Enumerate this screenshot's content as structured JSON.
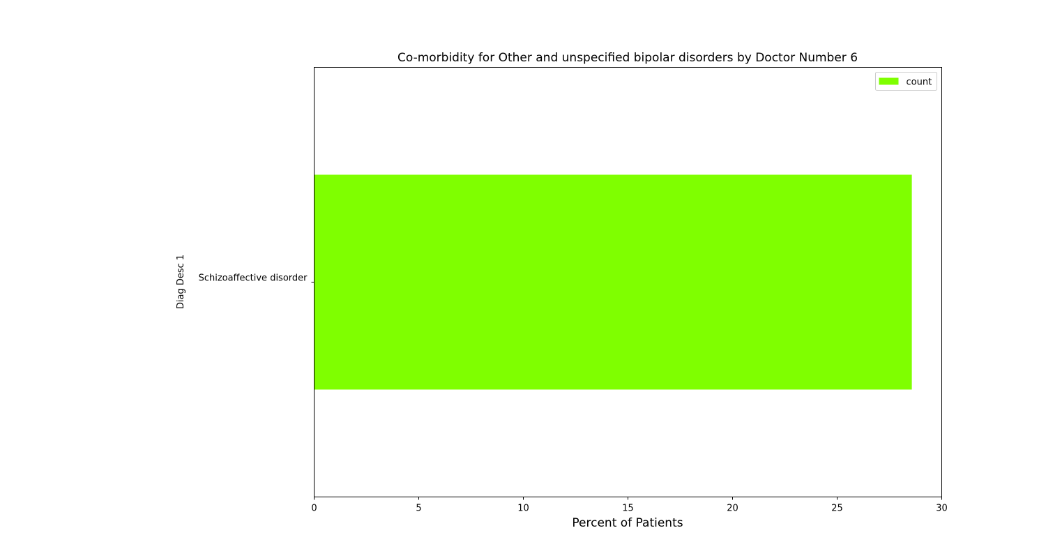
{
  "chart_data": {
    "type": "bar",
    "orientation": "horizontal",
    "title": "Co-morbidity for Other and unspecified bipolar disorders by Doctor Number 6",
    "xlabel": "Percent of Patients",
    "ylabel": "Diag Desc 1",
    "categories": [
      "Schizoaffective disorder"
    ],
    "series": [
      {
        "name": "count",
        "values": [
          28.57
        ],
        "color": "#7fff00"
      }
    ],
    "xlim": [
      0,
      30
    ],
    "xticks": [
      0,
      5,
      10,
      15,
      20,
      25,
      30
    ],
    "grid": false,
    "legend_position": "top-right"
  }
}
